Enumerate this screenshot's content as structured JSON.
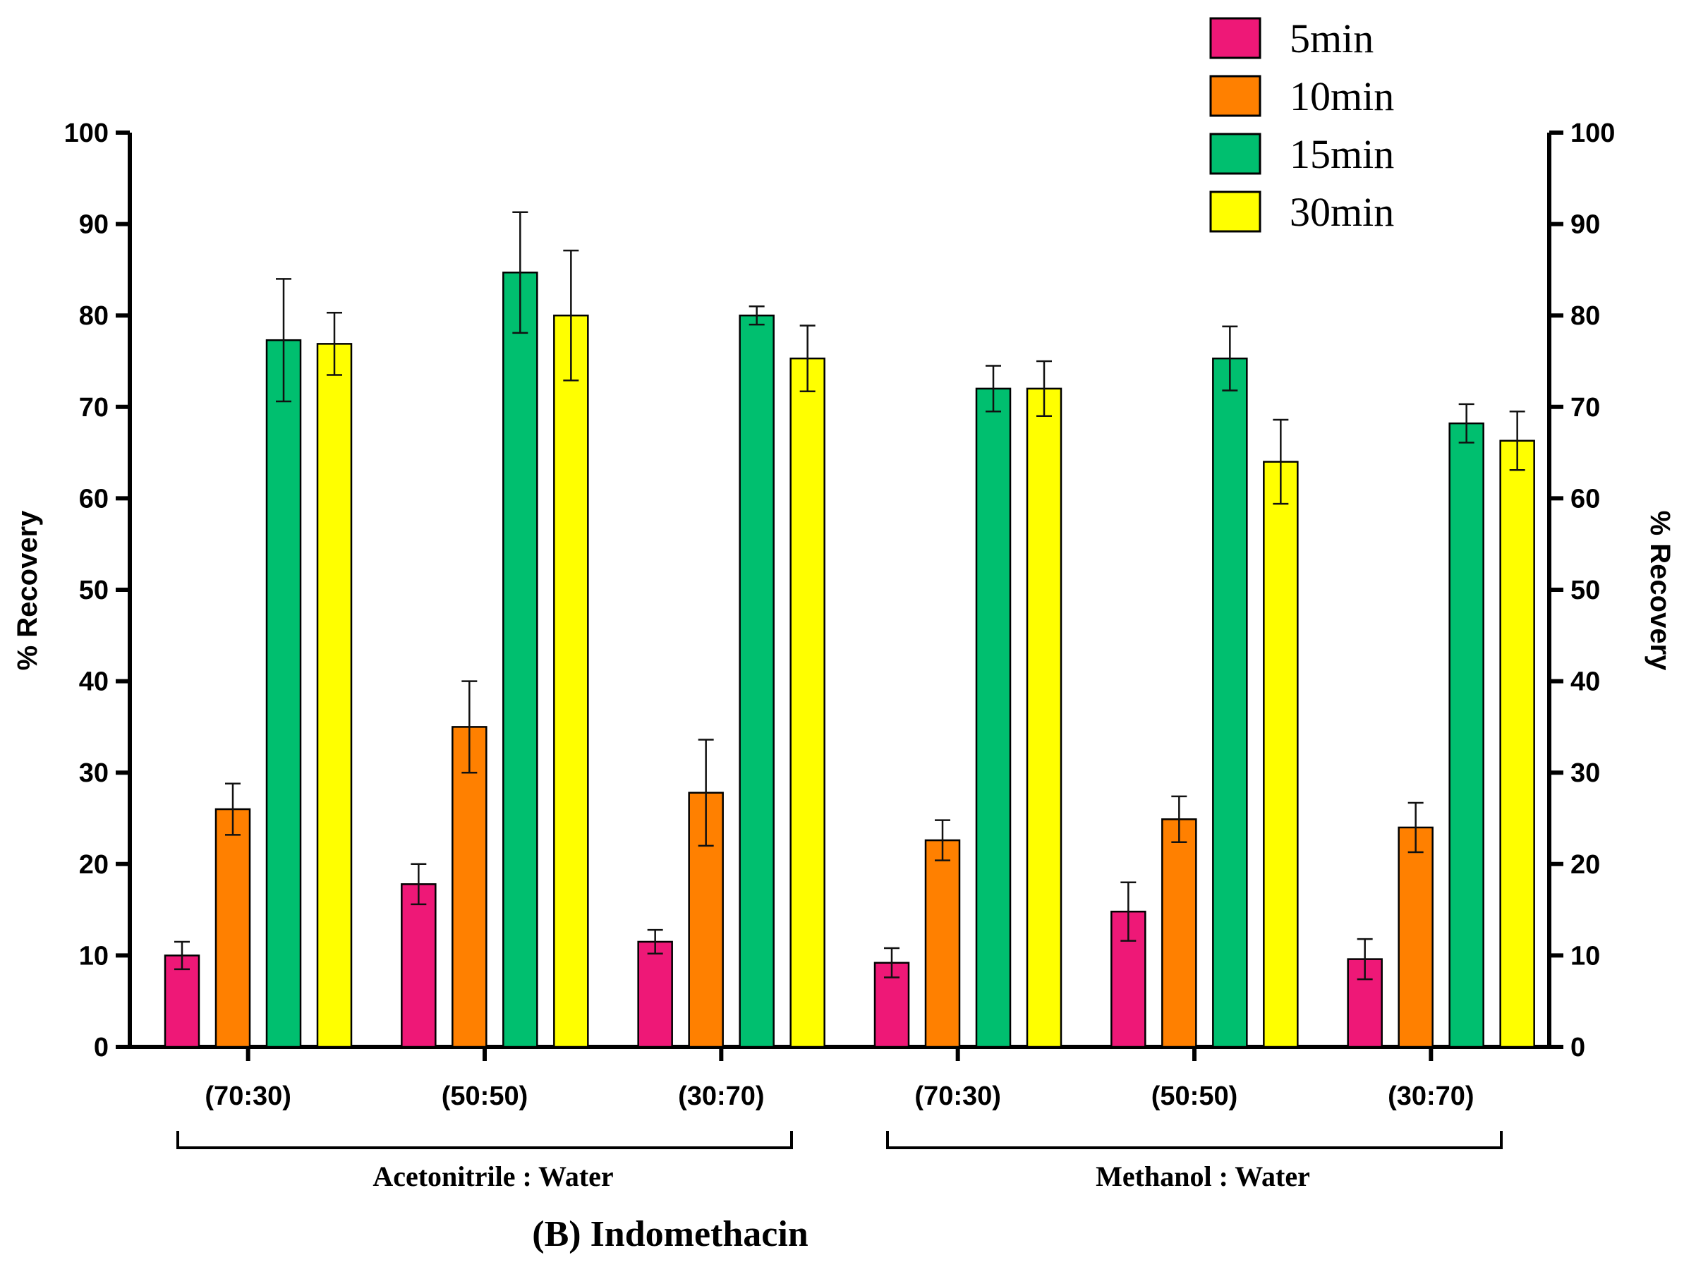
{
  "chart_data": {
    "type": "bar",
    "title": "",
    "caption": "(B) Indomethacin",
    "ylabel": "% Recovery",
    "ylabel_right": "% Recovery",
    "xlabel": "",
    "ylim": [
      0,
      100
    ],
    "yticks": [
      0,
      10,
      20,
      30,
      40,
      50,
      60,
      70,
      80,
      90,
      100
    ],
    "categories": [
      "(70:30)",
      "(50:50)",
      "(30:70)",
      "(70:30)",
      "(50:50)",
      "(30:70)"
    ],
    "category_groups": [
      {
        "label": "Acetonitrile : Water",
        "categories": [
          0,
          1,
          2
        ]
      },
      {
        "label": "Methanol : Water",
        "categories": [
          3,
          4,
          5
        ]
      }
    ],
    "legend_position": "top-right",
    "grid": false,
    "error_bars": true,
    "series": [
      {
        "name": "5min",
        "color": "#ee1877",
        "values": [
          10,
          17.8,
          11.5,
          9.2,
          14.8,
          9.6
        ],
        "errors": [
          1.5,
          2.2,
          1.3,
          1.6,
          3.2,
          2.2
        ]
      },
      {
        "name": "10min",
        "color": "#ff8000",
        "values": [
          26,
          35,
          27.8,
          22.6,
          24.9,
          24
        ],
        "errors": [
          2.8,
          5,
          5.8,
          2.2,
          2.5,
          2.7
        ]
      },
      {
        "name": "15min",
        "color": "#00bf6f",
        "values": [
          77.3,
          84.7,
          80,
          72,
          75.3,
          68.2
        ],
        "errors": [
          6.7,
          6.6,
          1,
          2.5,
          3.5,
          2.1
        ]
      },
      {
        "name": "30min",
        "color": "#ffff00",
        "values": [
          76.9,
          80,
          75.3,
          72,
          64,
          66.3
        ],
        "errors": [
          3.4,
          7.1,
          3.6,
          3,
          4.6,
          3.2
        ]
      }
    ]
  }
}
